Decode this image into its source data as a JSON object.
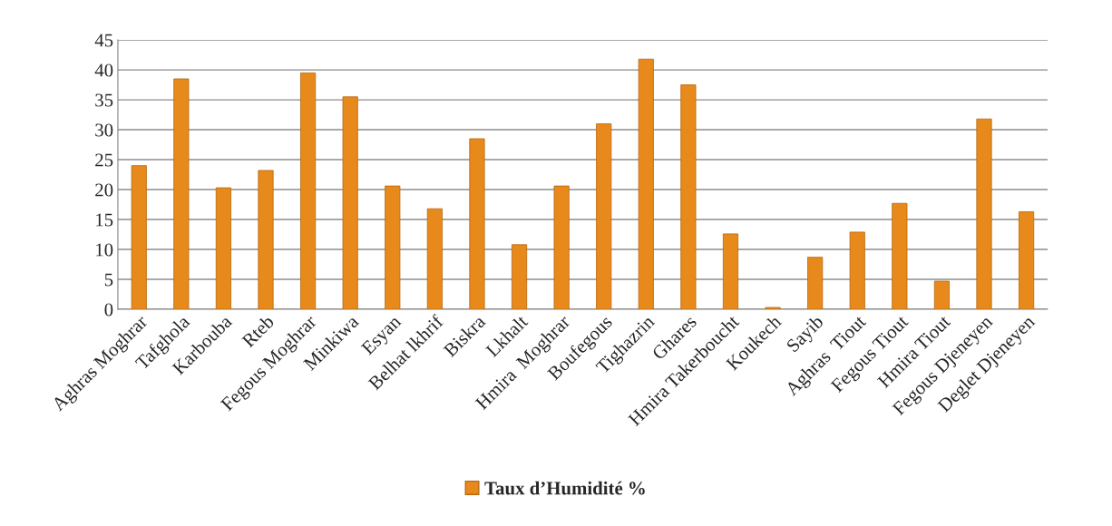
{
  "chart_data": {
    "type": "bar",
    "categories": [
      "Aghras Moghrar",
      "Tafghola",
      "Karbouba",
      "Rteb",
      "Fegous Moghrar",
      "Minkiwa",
      "Esyan",
      "Belhat lkhrif",
      "Biskra",
      "Lkhalt",
      "Hmira  Moghrar",
      "Boufegous",
      "Tighazrin",
      "Ghares",
      "Hmira Takerboucht",
      "Koukech",
      "Sayib",
      "Aghras  Tiout",
      "Fegous Tiout",
      "Hmira Tiout",
      "Fegous Djeneyen",
      "Deglet Djeneyen"
    ],
    "series": [
      {
        "name": "Taux d’Humidité %",
        "color": "#e8891c",
        "values": [
          24,
          38.5,
          20.3,
          23.2,
          39.5,
          35.5,
          20.6,
          16.8,
          28.5,
          10.8,
          20.6,
          31,
          41.8,
          37.5,
          12.6,
          0.3,
          8.7,
          12.9,
          17.7,
          4.7,
          31.8,
          16.3
        ]
      }
    ],
    "ylim": [
      0,
      45
    ],
    "yticks": [
      0,
      5,
      10,
      15,
      20,
      25,
      30,
      35,
      40,
      45
    ],
    "grid": "y",
    "legend": "bottom"
  }
}
